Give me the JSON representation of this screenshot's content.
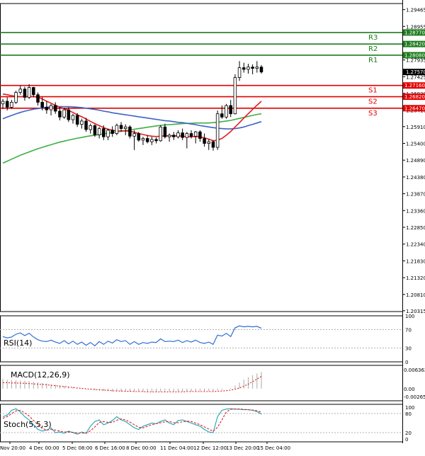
{
  "chart_data": {
    "type": "candlestick",
    "price_axis_ticks": [
      "1.29465",
      "1.28955",
      "1.28445",
      "1.27935",
      "1.27425",
      "1.26920",
      "1.26410",
      "1.25910",
      "1.25400",
      "1.24890",
      "1.24380",
      "1.23870",
      "1.23360",
      "1.22850",
      "1.22340",
      "1.21830",
      "1.21320",
      "1.20810",
      "1.20315"
    ],
    "price_range": [
      1.2029,
      1.2965
    ],
    "current_price": "1.27570",
    "levels": [
      {
        "name": "R3",
        "value": 1.2877,
        "label": "1.28770",
        "color": "#1e7d1e"
      },
      {
        "name": "R2",
        "value": 1.2842,
        "label": "1.28420",
        "color": "#1e7d1e"
      },
      {
        "name": "R1",
        "value": 1.2808,
        "label": "1.28080",
        "color": "#1e7d1e"
      },
      {
        "name": "S1",
        "value": 1.2716,
        "label": "1.27160",
        "color": "#e00000"
      },
      {
        "name": "S2",
        "value": 1.2682,
        "label": "1.26820",
        "color": "#e00000"
      },
      {
        "name": "S3",
        "value": 1.2647,
        "label": "1.26470",
        "color": "#e00000"
      }
    ],
    "x_labels": [
      "Nov 20:00",
      "4 Dec 00:00",
      "5 Dec 08:00",
      "6 Dec 16:00",
      "8 Dec 00:00",
      "11 Dec 04:00",
      "12 Dec 12:00",
      "13 Dec 20:00",
      "15 Dec 04:00"
    ],
    "candles": [
      [
        1.266,
        1.2675,
        1.2645,
        1.2668
      ],
      [
        1.2668,
        1.268,
        1.264,
        1.265
      ],
      [
        1.265,
        1.2672,
        1.2645,
        1.2665
      ],
      [
        1.2665,
        1.27,
        1.266,
        1.2695
      ],
      [
        1.2695,
        1.2715,
        1.2688,
        1.2705
      ],
      [
        1.2705,
        1.2712,
        1.267,
        1.268
      ],
      [
        1.268,
        1.272,
        1.2675,
        1.271
      ],
      [
        1.271,
        1.2712,
        1.268,
        1.2688
      ],
      [
        1.2688,
        1.2695,
        1.2655,
        1.2665
      ],
      [
        1.2665,
        1.268,
        1.264,
        1.265
      ],
      [
        1.265,
        1.2668,
        1.263,
        1.2642
      ],
      [
        1.2642,
        1.266,
        1.2625,
        1.2655
      ],
      [
        1.2655,
        1.2665,
        1.263,
        1.2638
      ],
      [
        1.2638,
        1.265,
        1.261,
        1.262
      ],
      [
        1.262,
        1.2648,
        1.2615,
        1.2642
      ],
      [
        1.2642,
        1.265,
        1.2605,
        1.2612
      ],
      [
        1.2612,
        1.263,
        1.26,
        1.2625
      ],
      [
        1.2625,
        1.2632,
        1.259,
        1.2598
      ],
      [
        1.2598,
        1.2615,
        1.2585,
        1.2608
      ],
      [
        1.2608,
        1.2618,
        1.2575,
        1.2582
      ],
      [
        1.2582,
        1.26,
        1.257,
        1.2594
      ],
      [
        1.2594,
        1.2598,
        1.256,
        1.2566
      ],
      [
        1.2566,
        1.259,
        1.2555,
        1.2585
      ],
      [
        1.2585,
        1.2595,
        1.255,
        1.256
      ],
      [
        1.256,
        1.2585,
        1.255,
        1.258
      ],
      [
        1.258,
        1.2592,
        1.256,
        1.257
      ],
      [
        1.257,
        1.26,
        1.2565,
        1.2595
      ],
      [
        1.2595,
        1.2605,
        1.2575,
        1.2585
      ],
      [
        1.2585,
        1.2598,
        1.2565,
        1.259
      ],
      [
        1.259,
        1.2595,
        1.2555,
        1.2562
      ],
      [
        1.2562,
        1.258,
        1.252,
        1.257
      ],
      [
        1.257,
        1.2575,
        1.2545,
        1.255
      ],
      [
        1.255,
        1.256,
        1.2535,
        1.2555
      ],
      [
        1.2555,
        1.2565,
        1.254,
        1.2545
      ],
      [
        1.2545,
        1.256,
        1.2535,
        1.2552
      ],
      [
        1.2552,
        1.2558,
        1.254,
        1.2548
      ],
      [
        1.2548,
        1.2595,
        1.2545,
        1.259
      ],
      [
        1.259,
        1.26,
        1.2555,
        1.256
      ],
      [
        1.256,
        1.257,
        1.2545,
        1.2565
      ],
      [
        1.2565,
        1.2575,
        1.255,
        1.256
      ],
      [
        1.256,
        1.258,
        1.2555,
        1.2572
      ],
      [
        1.2572,
        1.2585,
        1.255,
        1.2558
      ],
      [
        1.2558,
        1.2575,
        1.2525,
        1.257
      ],
      [
        1.257,
        1.258,
        1.2555,
        1.2562
      ],
      [
        1.2562,
        1.2578,
        1.254,
        1.2575
      ],
      [
        1.2575,
        1.258,
        1.2545,
        1.2555
      ],
      [
        1.2555,
        1.257,
        1.253,
        1.254
      ],
      [
        1.254,
        1.2552,
        1.252,
        1.2545
      ],
      [
        1.2545,
        1.255,
        1.2518,
        1.2528
      ],
      [
        1.2528,
        1.264,
        1.252,
        1.263
      ],
      [
        1.263,
        1.2655,
        1.2615,
        1.262
      ],
      [
        1.262,
        1.266,
        1.2615,
        1.2655
      ],
      [
        1.2655,
        1.2672,
        1.262,
        1.263
      ],
      [
        1.263,
        1.275,
        1.2628,
        1.274
      ],
      [
        1.274,
        1.279,
        1.273,
        1.277
      ],
      [
        1.277,
        1.2785,
        1.2755,
        1.2765
      ],
      [
        1.2765,
        1.2782,
        1.2752,
        1.2772
      ],
      [
        1.2772,
        1.278,
        1.275,
        1.2768
      ],
      [
        1.2768,
        1.279,
        1.2755,
        1.2772
      ],
      [
        1.2772,
        1.2778,
        1.2752,
        1.2757
      ]
    ],
    "sma_red": [
      1.269,
      1.2688,
      1.2685,
      1.2683,
      1.2682,
      1.2682,
      1.2683,
      1.2682,
      1.268,
      1.2675,
      1.2668,
      1.2662,
      1.2656,
      1.265,
      1.2646,
      1.264,
      1.2634,
      1.2627,
      1.2621,
      1.2614,
      1.2607,
      1.26,
      1.2594,
      1.2588,
      1.2583,
      1.258,
      1.2578,
      1.2578,
      1.2578,
      1.2577,
      1.2574,
      1.257,
      1.2567,
      1.2564,
      1.2562,
      1.2561,
      1.2562,
      1.2563,
      1.2563,
      1.2563,
      1.2563,
      1.2562,
      1.256,
      1.256,
      1.2561,
      1.256,
      1.2557,
      1.2553,
      1.2548,
      1.255,
      1.2555,
      1.2565,
      1.2576,
      1.259,
      1.2603,
      1.2617,
      1.263,
      1.2643,
      1.2656,
      1.2668
    ],
    "sma_blue": [
      1.2615,
      1.262,
      1.2625,
      1.263,
      1.2634,
      1.2638,
      1.2641,
      1.2644,
      1.2646,
      1.2648,
      1.265,
      1.2651,
      1.2652,
      1.2652,
      1.2652,
      1.2652,
      1.2651,
      1.265,
      1.2649,
      1.2647,
      1.2645,
      1.2643,
      1.2641,
      1.2638,
      1.2636,
      1.2633,
      1.2631,
      1.2629,
      1.2627,
      1.2625,
      1.2623,
      1.2621,
      1.2619,
      1.2617,
      1.2615,
      1.2613,
      1.2611,
      1.2609,
      1.2608,
      1.2606,
      1.2604,
      1.2603,
      1.2601,
      1.2599,
      1.2597,
      1.2594,
      1.2592,
      1.259,
      1.2588,
      1.2586,
      1.2585,
      1.2584,
      1.2584,
      1.2585,
      1.2587,
      1.259,
      1.2594,
      1.2598,
      1.2602,
      1.2606
    ],
    "sma_green": [
      1.248,
      1.2486,
      1.2492,
      1.2498,
      1.2504,
      1.2509,
      1.2514,
      1.2519,
      1.2524,
      1.2528,
      1.2532,
      1.2536,
      1.254,
      1.2544,
      1.2547,
      1.255,
      1.2553,
      1.2556,
      1.2558,
      1.2561,
      1.2563,
      1.2565,
      1.2567,
      1.2569,
      1.2571,
      1.2573,
      1.2575,
      1.2577,
      1.2579,
      1.2581,
      1.2583,
      1.2585,
      1.2587,
      1.2589,
      1.2591,
      1.2593,
      1.2595,
      1.2596,
      1.2597,
      1.2598,
      1.2599,
      1.26,
      1.2601,
      1.2601,
      1.2602,
      1.2602,
      1.2602,
      1.2602,
      1.2603,
      1.2604,
      1.2606,
      1.2608,
      1.261,
      1.2613,
      1.2616,
      1.2619,
      1.2622,
      1.2625,
      1.2628,
      1.263
    ],
    "rsi": {
      "label": "RSI(14)",
      "levels": [
        70,
        30
      ],
      "ticks": [
        "100",
        "70",
        "30",
        "0"
      ],
      "values": [
        55,
        52,
        54,
        60,
        63,
        57,
        62,
        54,
        48,
        45,
        44,
        47,
        43,
        40,
        46,
        39,
        45,
        38,
        43,
        36,
        42,
        35,
        44,
        38,
        45,
        41,
        48,
        44,
        46,
        38,
        44,
        38,
        42,
        40,
        43,
        42,
        50,
        44,
        45,
        44,
        47,
        42,
        46,
        43,
        47,
        42,
        40,
        43,
        38,
        58,
        56,
        62,
        55,
        74,
        78,
        76,
        77,
        76,
        77,
        73
      ]
    },
    "macd": {
      "label": "MACD(12,26,9)",
      "ticks": [
        "0.006362",
        "0.00",
        "-0.002652"
      ],
      "range": [
        -0.002652,
        0.006362
      ],
      "histogram": [
        0.0032,
        0.003,
        0.0029,
        0.0028,
        0.0027,
        0.0026,
        0.0025,
        0.0023,
        0.0021,
        0.0019,
        0.0017,
        0.0015,
        0.0013,
        0.0011,
        0.0009,
        0.0007,
        0.0005,
        0.0003,
        0.0001,
        -0.0001,
        -0.0003,
        -0.0005,
        -0.0007,
        -0.0008,
        -0.0009,
        -0.001,
        -0.001,
        -0.001,
        -0.001,
        -0.001,
        -0.0011,
        -0.0011,
        -0.0011,
        -0.0011,
        -0.0011,
        -0.0011,
        -0.001,
        -0.001,
        -0.001,
        -0.001,
        -0.001,
        -0.001,
        -0.001,
        -0.001,
        -0.0009,
        -0.0009,
        -0.0009,
        -0.0009,
        -0.0009,
        -0.0006,
        -0.0004,
        -0.0001,
        0.0002,
        0.001,
        0.002,
        0.003,
        0.0038,
        0.0045,
        0.0051,
        0.0056
      ],
      "signal": [
        0.002,
        0.002,
        0.0019,
        0.0019,
        0.0018,
        0.0018,
        0.0017,
        0.0016,
        0.0015,
        0.0014,
        0.0013,
        0.0011,
        0.001,
        0.0008,
        0.0007,
        0.0005,
        0.0004,
        0.0002,
        0.0001,
        -0.0001,
        -0.0002,
        -0.0003,
        -0.0004,
        -0.0005,
        -0.0006,
        -0.0007,
        -0.0008,
        -0.0008,
        -0.0009,
        -0.0009,
        -0.001,
        -0.001,
        -0.001,
        -0.0011,
        -0.0011,
        -0.0011,
        -0.0011,
        -0.0011,
        -0.0011,
        -0.0011,
        -0.0011,
        -0.0011,
        -0.001,
        -0.001,
        -0.001,
        -0.001,
        -0.001,
        -0.001,
        -0.001,
        -0.0009,
        -0.0008,
        -0.0007,
        -0.0005,
        -0.0002,
        0.0002,
        0.0008,
        0.0015,
        0.0023,
        0.0032,
        0.0041
      ]
    },
    "stoch": {
      "label": "Stoch(5,5,3)",
      "levels": [
        80,
        20
      ],
      "ticks": [
        "100",
        "80",
        "20",
        "0"
      ],
      "k": [
        70,
        75,
        90,
        95,
        85,
        70,
        60,
        45,
        30,
        25,
        28,
        35,
        20,
        22,
        18,
        25,
        20,
        15,
        22,
        18,
        40,
        55,
        60,
        45,
        50,
        58,
        70,
        60,
        55,
        45,
        35,
        30,
        40,
        45,
        50,
        48,
        55,
        60,
        50,
        45,
        58,
        60,
        55,
        50,
        45,
        40,
        30,
        22,
        20,
        70,
        90,
        94,
        95,
        94,
        93,
        92,
        92,
        90,
        86,
        78
      ],
      "d": [
        65,
        70,
        80,
        88,
        90,
        82,
        72,
        58,
        45,
        33,
        28,
        30,
        28,
        25,
        22,
        22,
        21,
        19,
        19,
        18,
        26,
        38,
        52,
        55,
        52,
        52,
        59,
        63,
        60,
        53,
        45,
        37,
        35,
        40,
        45,
        48,
        51,
        54,
        55,
        51,
        51,
        54,
        56,
        55,
        50,
        45,
        38,
        31,
        24,
        37,
        60,
        85,
        93,
        94,
        94,
        93,
        92,
        91,
        89,
        84
      ]
    }
  }
}
